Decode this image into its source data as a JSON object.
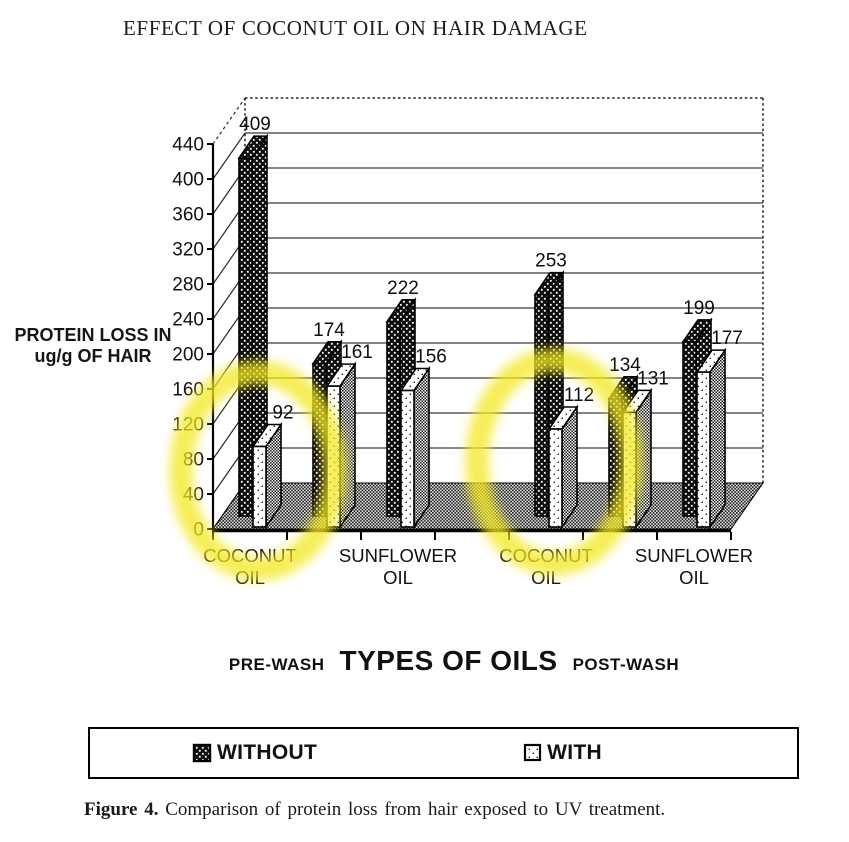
{
  "chart_data": {
    "type": "bar",
    "title": "EFFECT OF COCONUT OIL ON HAIR DAMAGE",
    "ylabel_lines": [
      "PROTEIN LOSS IN",
      "ug/g OF HAIR"
    ],
    "ylim": [
      0,
      440
    ],
    "y_ticks": [
      0,
      40,
      80,
      120,
      160,
      200,
      240,
      280,
      320,
      360,
      400,
      440
    ],
    "grid": true,
    "legend_position": "bottom",
    "xlabel_left": "PRE-WASH",
    "xlabel_center": "TYPES OF OILS",
    "xlabel_right": "POST-WASH",
    "series": [
      {
        "name": "WITHOUT",
        "pattern": "black-checker"
      },
      {
        "name": "WITH",
        "pattern": "white-dotted"
      }
    ],
    "groups": [
      {
        "category": "COCONUT OIL",
        "label_lines": [
          "COCONUT",
          "OIL"
        ],
        "section": "pre-wash",
        "without": 409,
        "with": 92,
        "highlighted": true
      },
      {
        "category": "",
        "label_lines": [],
        "section": "pre-wash",
        "without": 174,
        "with": 161,
        "highlighted": false
      },
      {
        "category": "SUNFLOWER OIL",
        "label_lines": [
          "SUNFLOWER",
          "OIL"
        ],
        "section": "pre-wash",
        "without": 222,
        "with": 156,
        "highlighted": false
      },
      {
        "category": "COCONUT OIL",
        "label_lines": [
          "COCONUT",
          "OIL"
        ],
        "section": "post-wash",
        "without": 253,
        "with": 112,
        "highlighted": true
      },
      {
        "category": "",
        "label_lines": [],
        "section": "post-wash",
        "without": 134,
        "with": 131,
        "highlighted": false
      },
      {
        "category": "SUNFLOWER OIL",
        "label_lines": [
          "SUNFLOWER",
          "OIL"
        ],
        "section": "post-wash",
        "without": 199,
        "with": 177,
        "highlighted": false
      }
    ],
    "highlight_color": "#f3e820"
  },
  "caption": {
    "label": "Figure 4.",
    "text": "Comparison of protein loss from hair exposed to UV treatment."
  }
}
